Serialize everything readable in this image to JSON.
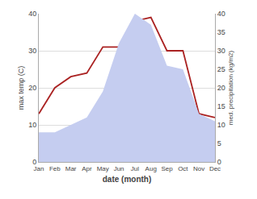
{
  "chart_data": {
    "type": "line",
    "xlabel": "date (month)",
    "ylabel": "max temp (C)",
    "y2label": "med. precipitation (kg/m2)",
    "categories": [
      "Jan",
      "Feb",
      "Mar",
      "Apr",
      "May",
      "Jun",
      "Jul",
      "Aug",
      "Sep",
      "Oct",
      "Nov",
      "Dec"
    ],
    "series": [
      {
        "type": "area",
        "axis": "y2",
        "color": "#c5cdf0",
        "values": [
          8,
          8,
          10,
          12,
          19,
          32,
          40,
          37,
          26,
          25,
          13,
          11
        ]
      },
      {
        "type": "line",
        "color": "#aa2222",
        "values": [
          13,
          20,
          23,
          24,
          31,
          31,
          38,
          39,
          30,
          30,
          13,
          12
        ]
      }
    ],
    "ylim": [
      0,
      40
    ],
    "yticks": [
      0,
      10,
      20,
      30,
      40
    ],
    "y2lim": [
      0,
      40
    ],
    "y2ticks": [
      0,
      5,
      10,
      15,
      20,
      25,
      30,
      35,
      40
    ],
    "grid": true
  }
}
